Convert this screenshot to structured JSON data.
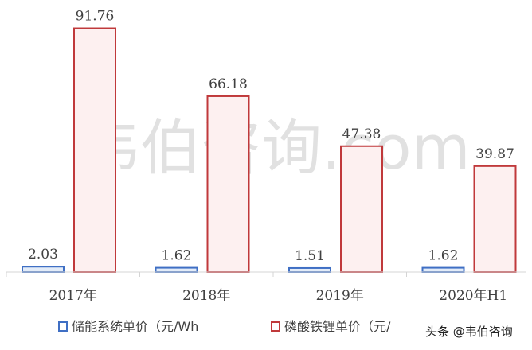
{
  "chart_data": {
    "type": "bar",
    "categories": [
      "2017年",
      "2018年",
      "2019年",
      "2020年H1"
    ],
    "series": [
      {
        "name": "储能系统单价（元/Wh",
        "values": [
          2.03,
          1.62,
          1.51,
          1.62
        ],
        "color": "#3f6fc4",
        "fill": "#e3ecf8",
        "labels": [
          "2.03",
          "1.62",
          "1.51",
          "1.62"
        ]
      },
      {
        "name": "磷酸铁锂单价（元/",
        "values": [
          91.76,
          66.18,
          47.38,
          39.87
        ],
        "color": "#c0393b",
        "fill": "#fdf0f0",
        "labels": [
          "91.76",
          "66.18",
          "47.38",
          "39.87"
        ]
      }
    ],
    "title": "",
    "xlabel": "",
    "ylabel": "",
    "ylim": [
      0,
      100
    ],
    "grid": false,
    "legend": "bottom"
  },
  "watermark": "韦伯咨询.com",
  "attribution": "头条 @韦伯咨询"
}
